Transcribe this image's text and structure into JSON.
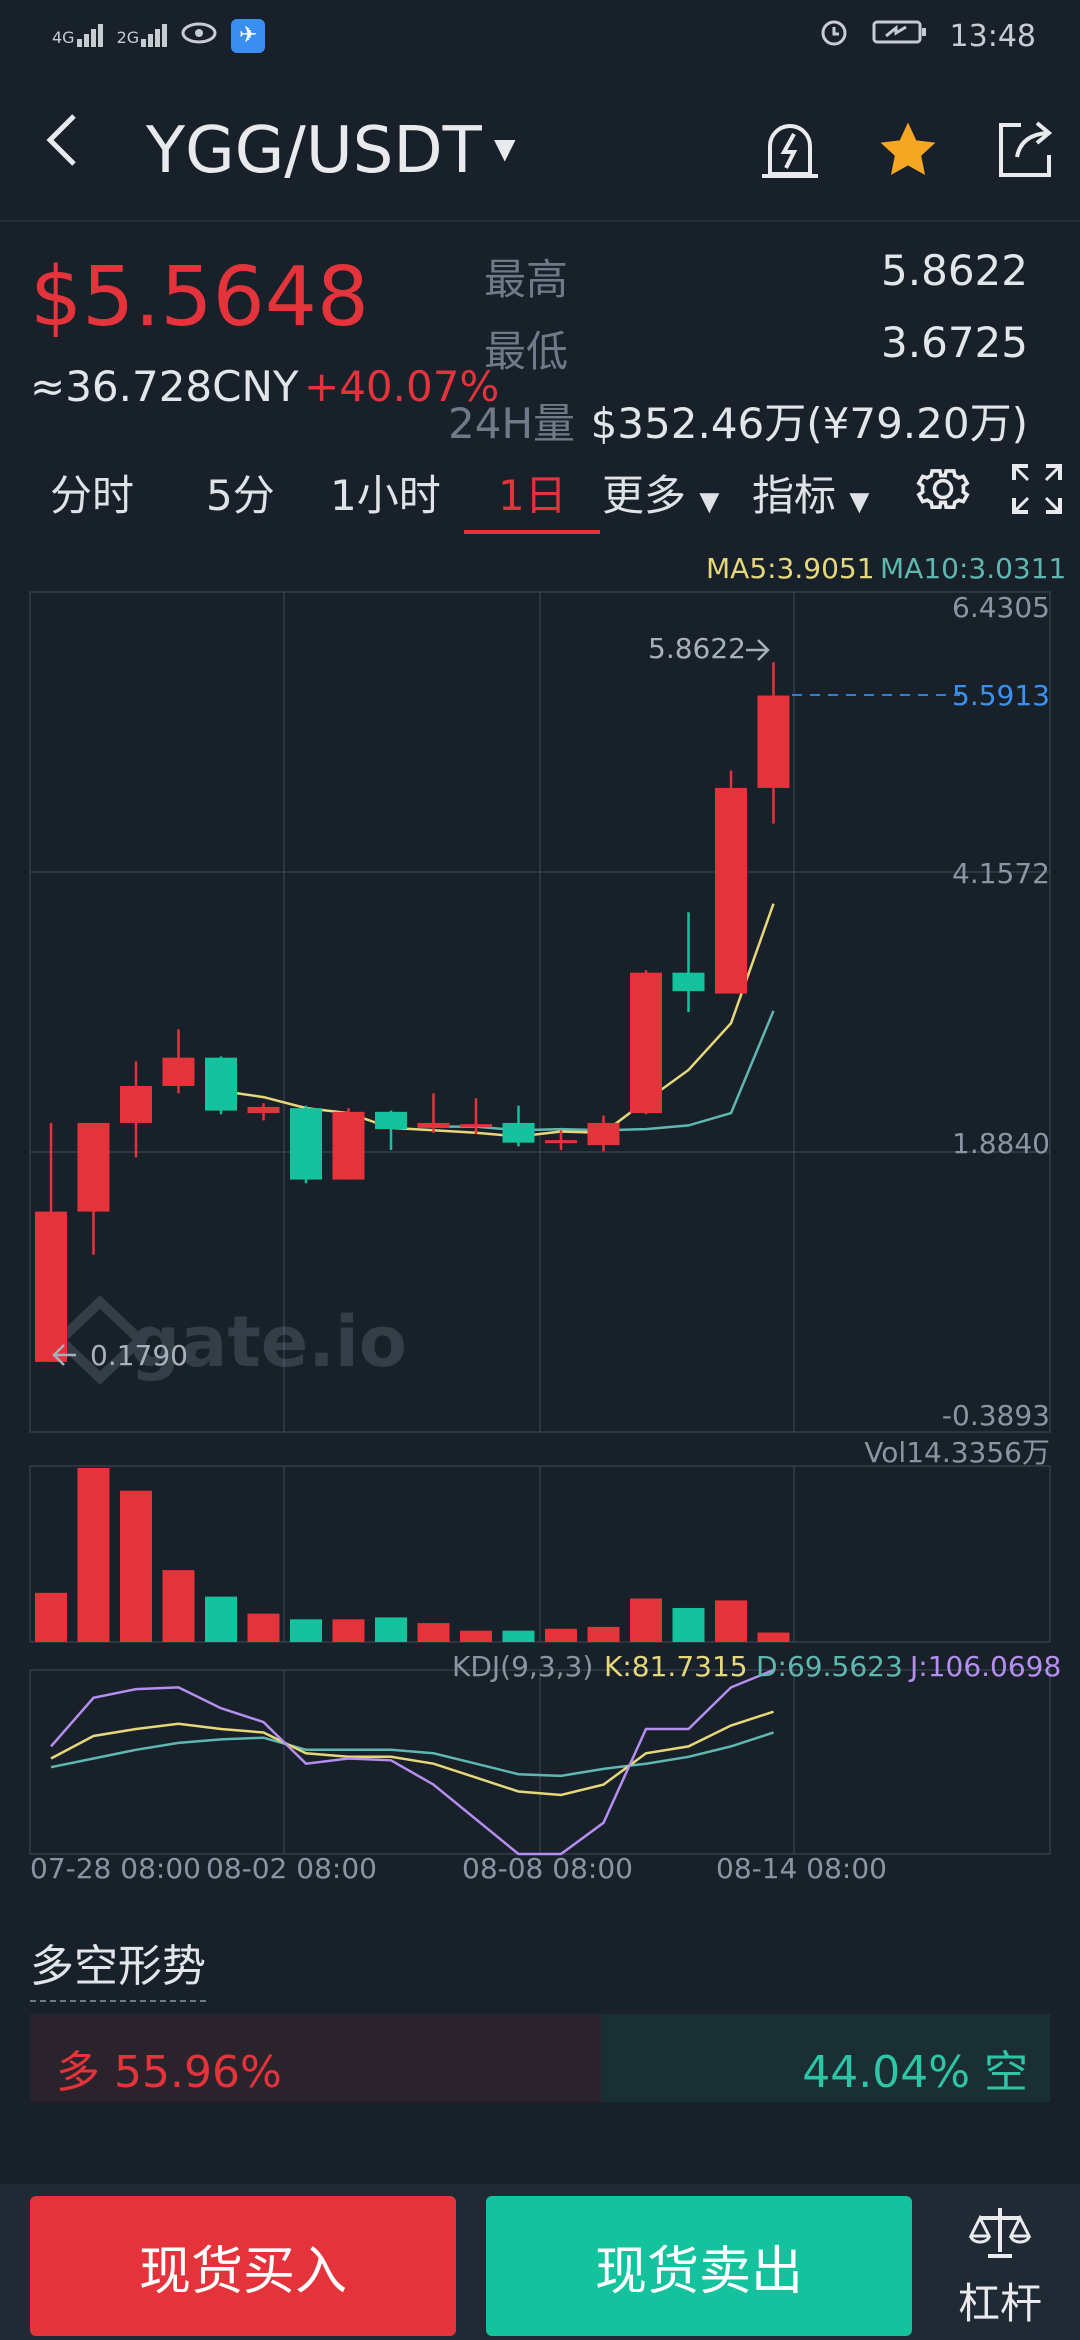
{
  "status": {
    "net1": "4G",
    "net2": "2G",
    "time": "13:48"
  },
  "header": {
    "pair": "YGG/USDT"
  },
  "price": {
    "last": "$5.5648",
    "cny": "≈36.728CNY",
    "change": "+40.07%"
  },
  "stats": {
    "high_label": "最高",
    "high_value": "5.8622",
    "low_label": "最低",
    "low_value": "3.6725",
    "vol_label": "24H量",
    "vol_value": "$352.46万(¥79.20万)"
  },
  "tabs": [
    "分时",
    "5分",
    "1小时",
    "1日",
    "更多",
    "指标"
  ],
  "colors": {
    "up": "#e5333b",
    "down": "#14c29e",
    "ma5": "#e6d87a",
    "ma10": "#5fb8b0",
    "kd_k": "#e6d87a",
    "kd_d": "#5fb8b0",
    "kd_j": "#b68ef0"
  },
  "chart_data": {
    "type": "candlestick",
    "ma5_label": "MA5:3.9051",
    "ma10_label": "MA10:3.0311",
    "y_ticks": [
      "6.4305",
      "4.1572",
      "1.8840",
      "-0.3893"
    ],
    "high_marker": "5.8622",
    "low_marker": "0.1790",
    "last_price_marker": "5.5913",
    "x_labels": [
      "07-28 08:00",
      "08-02 08:00",
      "08-08 08:00",
      "08-14 08:00"
    ],
    "candles": [
      {
        "o": 0.18,
        "h": 2.12,
        "l": 0.18,
        "c": 1.4
      },
      {
        "o": 1.4,
        "h": 2.12,
        "l": 1.05,
        "c": 2.12
      },
      {
        "o": 2.12,
        "h": 2.62,
        "l": 1.84,
        "c": 2.42
      },
      {
        "o": 2.42,
        "h": 2.88,
        "l": 2.36,
        "c": 2.65
      },
      {
        "o": 2.65,
        "h": 2.66,
        "l": 2.19,
        "c": 2.22
      },
      {
        "o": 2.2,
        "h": 2.28,
        "l": 2.14,
        "c": 2.25
      },
      {
        "o": 2.24,
        "h": 2.26,
        "l": 1.63,
        "c": 1.66
      },
      {
        "o": 1.66,
        "h": 2.24,
        "l": 1.66,
        "c": 2.21
      },
      {
        "o": 2.21,
        "h": 2.22,
        "l": 1.9,
        "c": 2.07
      },
      {
        "o": 2.08,
        "h": 2.36,
        "l": 2.04,
        "c": 2.12
      },
      {
        "o": 2.09,
        "h": 2.32,
        "l": 2.03,
        "c": 2.11
      },
      {
        "o": 2.12,
        "h": 2.26,
        "l": 1.93,
        "c": 1.96
      },
      {
        "o": 1.96,
        "h": 2.06,
        "l": 1.9,
        "c": 1.98
      },
      {
        "o": 1.94,
        "h": 2.18,
        "l": 1.89,
        "c": 2.12
      },
      {
        "o": 2.2,
        "h": 3.36,
        "l": 2.19,
        "c": 3.34
      },
      {
        "o": 3.34,
        "h": 3.83,
        "l": 3.02,
        "c": 3.19
      },
      {
        "o": 3.17,
        "h": 4.98,
        "l": 3.17,
        "c": 4.84
      },
      {
        "o": 4.84,
        "h": 5.86,
        "l": 4.55,
        "c": 5.59
      }
    ],
    "ma5": [
      null,
      null,
      null,
      null,
      2.38,
      2.33,
      2.24,
      2.2,
      2.08,
      2.06,
      2.04,
      2.01,
      2.05,
      2.04,
      2.3,
      2.55,
      2.93,
      3.9
    ],
    "ma10": [
      null,
      null,
      null,
      null,
      null,
      null,
      null,
      null,
      null,
      2.09,
      2.09,
      2.06,
      2.07,
      2.06,
      2.07,
      2.1,
      2.2,
      3.03
    ],
    "vol_label": "Vol14.3356万",
    "volume": [
      0.26,
      0.92,
      0.8,
      0.38,
      0.24,
      0.15,
      0.12,
      0.12,
      0.13,
      0.1,
      0.06,
      0.06,
      0.07,
      0.08,
      0.23,
      0.18,
      0.22,
      0.05
    ],
    "kd_label": "KDJ(9,3,3)",
    "k_label": "K:81.7315",
    "d_label": "D:69.5623",
    "j_label": "J:106.0698",
    "k": [
      55,
      68,
      72,
      75,
      72,
      70,
      58,
      56,
      56,
      52,
      44,
      36,
      34,
      40,
      58,
      62,
      74,
      82
    ],
    "d": [
      50,
      55,
      60,
      64,
      66,
      67,
      60,
      60,
      60,
      58,
      52,
      46,
      45,
      49,
      52,
      56,
      62,
      70
    ],
    "j": [
      62,
      90,
      95,
      96,
      84,
      76,
      52,
      55,
      54,
      40,
      20,
      0,
      0,
      18,
      72,
      72,
      96,
      106
    ]
  },
  "sentiment": {
    "title": "多空形势",
    "long": "多 55.96%",
    "long_ratio": 0.5596,
    "short": "44.04% 空"
  },
  "bottom": {
    "buy": "现货买入",
    "sell": "现货卖出",
    "leverage": "杠杆"
  }
}
